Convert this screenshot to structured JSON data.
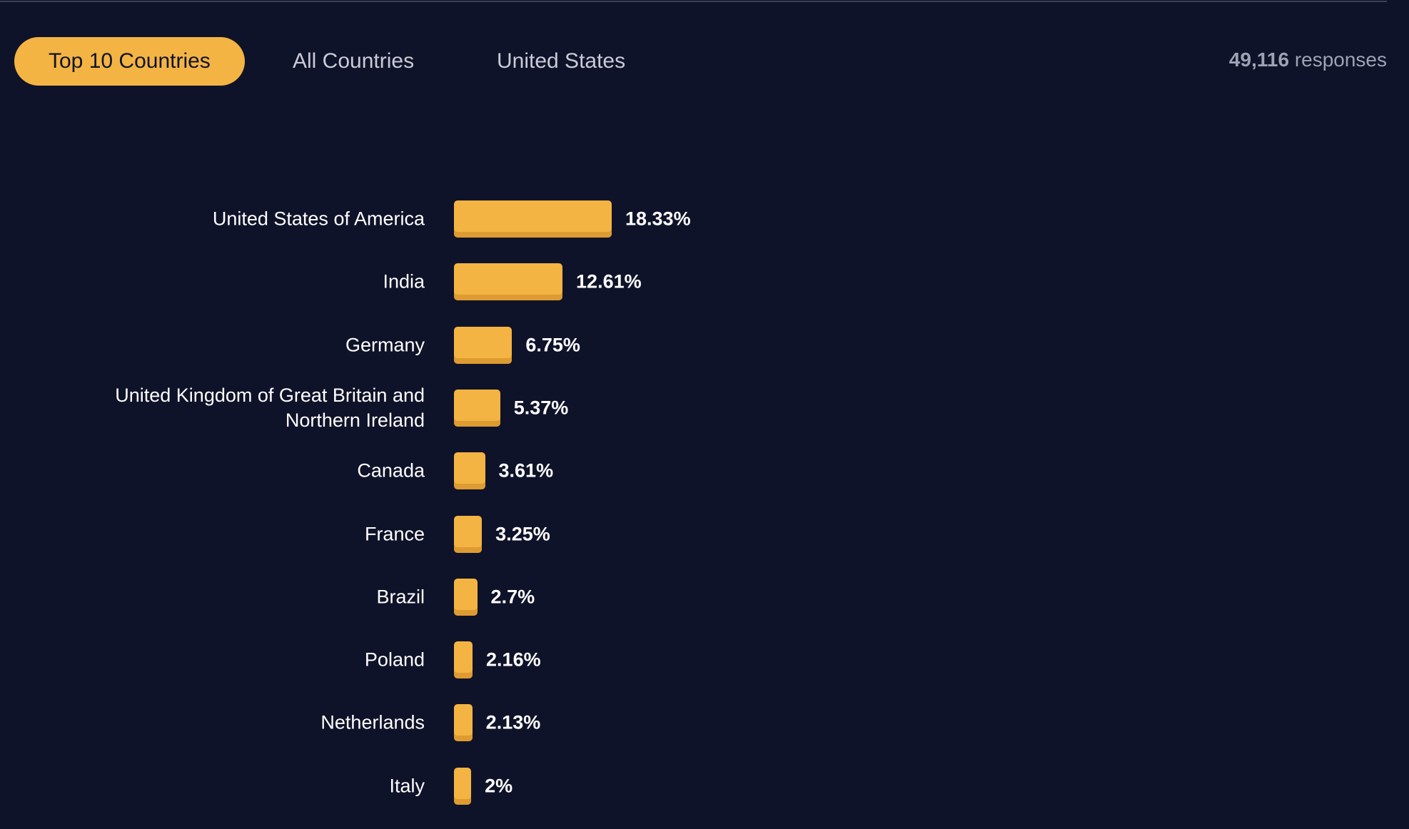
{
  "tabs": [
    {
      "label": "Top 10 Countries",
      "active": true
    },
    {
      "label": "All Countries",
      "active": false
    },
    {
      "label": "United States",
      "active": false
    }
  ],
  "responses": {
    "count": "49,116",
    "label": "responses"
  },
  "chart_data": {
    "type": "bar",
    "orientation": "horizontal",
    "color": "#f4b443",
    "categories": [
      "United States of America",
      "India",
      "Germany",
      "United Kingdom of Great Britain and Northern Ireland",
      "Canada",
      "France",
      "Brazil",
      "Poland",
      "Netherlands",
      "Italy"
    ],
    "values": [
      18.33,
      12.61,
      6.75,
      5.37,
      3.61,
      3.25,
      2.7,
      2.16,
      2.13,
      2
    ],
    "value_labels": [
      "18.33%",
      "12.61%",
      "6.75%",
      "5.37%",
      "3.61%",
      "3.25%",
      "2.7%",
      "2.16%",
      "2.13%",
      "2%"
    ]
  }
}
